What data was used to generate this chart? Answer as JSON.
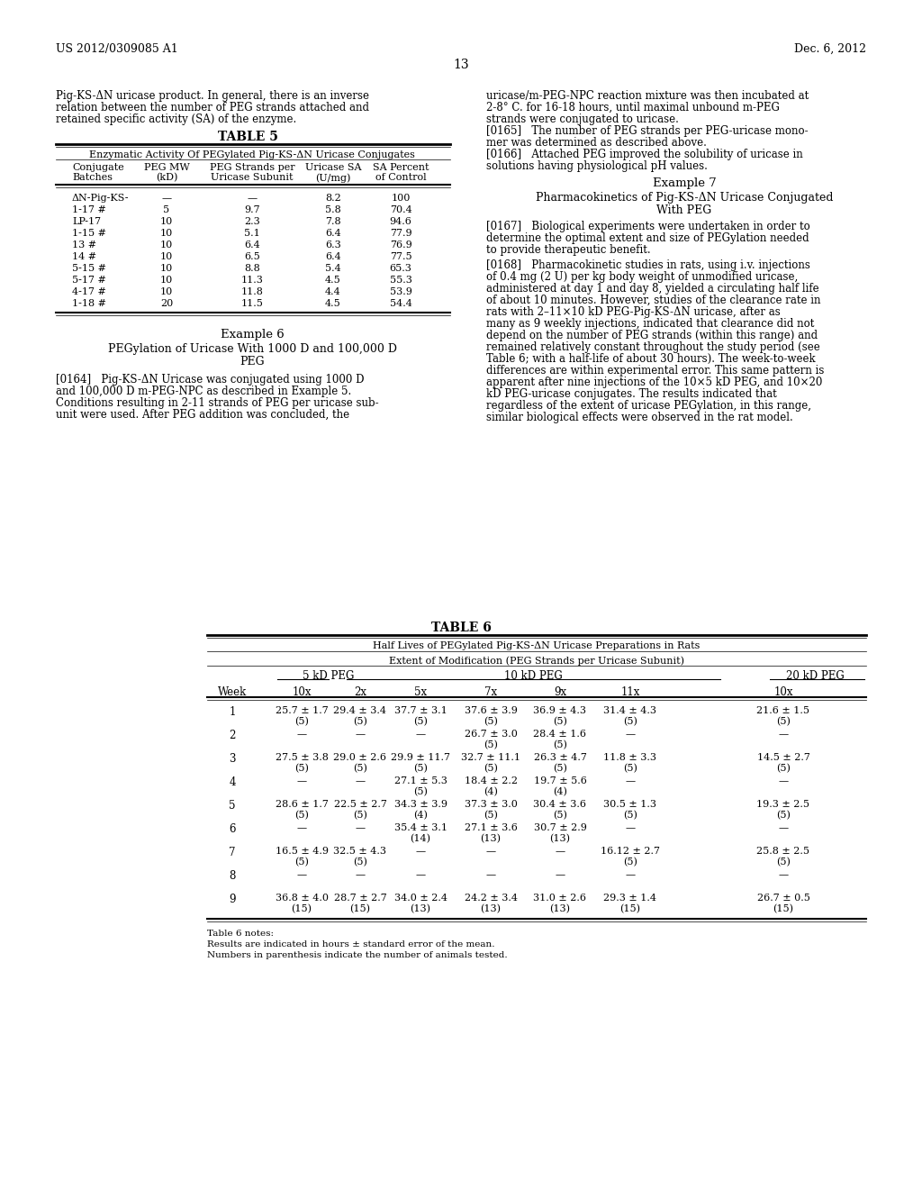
{
  "page_header_left": "US 2012/0309085 A1",
  "page_header_right": "Dec. 6, 2012",
  "page_number": "13",
  "bg_color": "#ffffff",
  "text_color": "#000000",
  "font_size_body": 8.5,
  "font_size_small": 7.5,
  "font_size_table_title": 10,
  "font_size_header": 9,
  "left_col_text": [
    "Pig-KS-ΔN uricase product. In general, there is an inverse",
    "relation between the number of PEG strands attached and",
    "retained specific activity (SA) of the enzyme."
  ],
  "table5_title": "TABLE 5",
  "table5_subtitle": "Enzymatic Activity Of PEGylated Pig-KS-ΔN Uricase Conjugates",
  "table5_headers": [
    "Conjugate\nBatches",
    "PEG MW\n(kD)",
    "PEG Strands per\nUricase Subunit",
    "Uricase SA\n(U/mg)",
    "SA Percent\nof Control"
  ],
  "table5_rows": [
    [
      "ΔN-Pig-KS-",
      "—",
      "—",
      "8.2",
      "100"
    ],
    [
      "1-17 #",
      "5",
      "9.7",
      "5.8",
      "70.4"
    ],
    [
      "LP-17",
      "10",
      "2.3",
      "7.8",
      "94.6"
    ],
    [
      "1-15 #",
      "10",
      "5.1",
      "6.4",
      "77.9"
    ],
    [
      "13 #",
      "10",
      "6.4",
      "6.3",
      "76.9"
    ],
    [
      "14 #",
      "10",
      "6.5",
      "6.4",
      "77.5"
    ],
    [
      "5-15 #",
      "10",
      "8.8",
      "5.4",
      "65.3"
    ],
    [
      "5-17 #",
      "10",
      "11.3",
      "4.5",
      "55.3"
    ],
    [
      "4-17 #",
      "10",
      "11.8",
      "4.4",
      "53.9"
    ],
    [
      "1-18 #",
      "20",
      "11.5",
      "4.5",
      "54.4"
    ]
  ],
  "example6_title": "Example 6",
  "example6_subtitle": "PEGylation of Uricase With 1000 D and 100,000 D\nPEG",
  "example6_para": "[0164]   Pig-KS-ΔN Uricase was conjugated using 1000 D\nand 100,000 D m-PEG-NPC as described in Example 5.\nConditions resulting in 2-11 strands of PEG per uricase sub-\nunit were used. After PEG addition was concluded, the",
  "right_col_text": [
    "uricase/m-PEG-NPC reaction mixture was then incubated at",
    "2-8° C. for 16-18 hours, until maximal unbound m-PEG",
    "strands were conjugated to uricase.",
    "[0165]   The number of PEG strands per PEG-uricase mono-",
    "mer was determined as described above.",
    "[0166]   Attached PEG improved the solubility of uricase in",
    "solutions having physiological pH values."
  ],
  "example7_title": "Example 7",
  "example7_subtitle": "Pharmacokinetics of Pig-KS-ΔN Uricase Conjugated\nWith PEG",
  "example7_para1": "[0167]   Biological experiments were undertaken in order to\ndetermine the optimal extent and size of PEGylation needed\nto provide therapeutic benefit.",
  "example7_para2": "[0168]   Pharmacokinetic studies in rats, using i.v. injections\nof 0.4 mg (2 U) per kg body weight of unmodified uricase,\nadministered at day 1 and day 8, yielded a circulating half life\nof about 10 minutes. However, studies of the clearance rate in\nrats with 2–11×10 kD PEG-Pig-KS-ΔN uricase, after as\nmany as 9 weekly injections, indicated that clearance did not\ndepend on the number of PEG strands (within this range) and\nremained relatively constant throughout the study period (see\nTable 6; with a half-life of about 30 hours). The week-to-week\ndifferences are within experimental error. This same pattern is\napparent after nine injections of the 10×5 kD PEG, and 10×20\nkD PEG-uricase conjugates. The results indicated that\nregardless of the extent of uricase PEGylation, in this range,\nsimilar biological effects were observed in the rat model.",
  "table6_title": "TABLE 6",
  "table6_subtitle": "Half Lives of PEGylated Pig-KS-ΔN Uricase Preparations in Rats",
  "table6_extent_label": "Extent of Modification (PEG Strands per Uricase Subunit)",
  "table6_peg_groups": [
    "5 kD PEG",
    "10 kD PEG",
    "20 kD PEG"
  ],
  "table6_columns": [
    "Week",
    "10x",
    "2x",
    "5x",
    "7x",
    "9x",
    "11x",
    "10x"
  ],
  "table6_rows": [
    [
      "1",
      "25.7 ± 1.7\n(5)",
      "29.4 ± 3.4\n(5)",
      "37.7 ± 3.1\n(5)",
      "37.6 ± 3.9\n(5)",
      "36.9 ± 4.3\n(5)",
      "31.4 ± 4.3\n(5)",
      "21.6 ± 1.5\n(5)"
    ],
    [
      "2",
      "—",
      "—",
      "—",
      "26.7 ± 3.0\n(5)",
      "28.4 ± 1.6\n(5)",
      "—",
      "—"
    ],
    [
      "3",
      "27.5 ± 3.8\n(5)",
      "29.0 ± 2.6\n(5)",
      "29.9 ± 11.7\n(5)",
      "32.7 ± 11.1\n(5)",
      "26.3 ± 4.7\n(5)",
      "11.8 ± 3.3\n(5)",
      "14.5 ± 2.7\n(5)"
    ],
    [
      "4",
      "—",
      "—",
      "27.1 ± 5.3\n(5)",
      "18.4 ± 2.2\n(4)",
      "19.7 ± 5.6\n(4)",
      "—",
      "—"
    ],
    [
      "5",
      "28.6 ± 1.7\n(5)",
      "22.5 ± 2.7\n(5)",
      "34.3 ± 3.9\n(4)",
      "37.3 ± 3.0\n(5)",
      "30.4 ± 3.6\n(5)",
      "30.5 ± 1.3\n(5)",
      "19.3 ± 2.5\n(5)"
    ],
    [
      "6",
      "—",
      "—",
      "35.4 ± 3.1\n(14)",
      "27.1 ± 3.6\n(13)",
      "30.7 ± 2.9\n(13)",
      "—",
      "—"
    ],
    [
      "7",
      "16.5 ± 4.9\n(5)",
      "32.5 ± 4.3\n(5)",
      "—",
      "—",
      "—",
      "16.12 ± 2.7\n(5)",
      "25.8 ± 2.5\n(5)"
    ],
    [
      "8",
      "—",
      "—",
      "—",
      "—",
      "—",
      "—",
      "—"
    ],
    [
      "9",
      "36.8 ± 4.0\n(15)",
      "28.7 ± 2.7\n(15)",
      "34.0 ± 2.4\n(13)",
      "24.2 ± 3.4\n(13)",
      "31.0 ± 2.6\n(13)",
      "29.3 ± 1.4\n(15)",
      "26.7 ± 0.5\n(15)"
    ]
  ],
  "table6_notes": [
    "Table 6 notes:",
    "Results are indicated in hours ± standard error of the mean.",
    "Numbers in parenthesis indicate the number of animals tested."
  ]
}
